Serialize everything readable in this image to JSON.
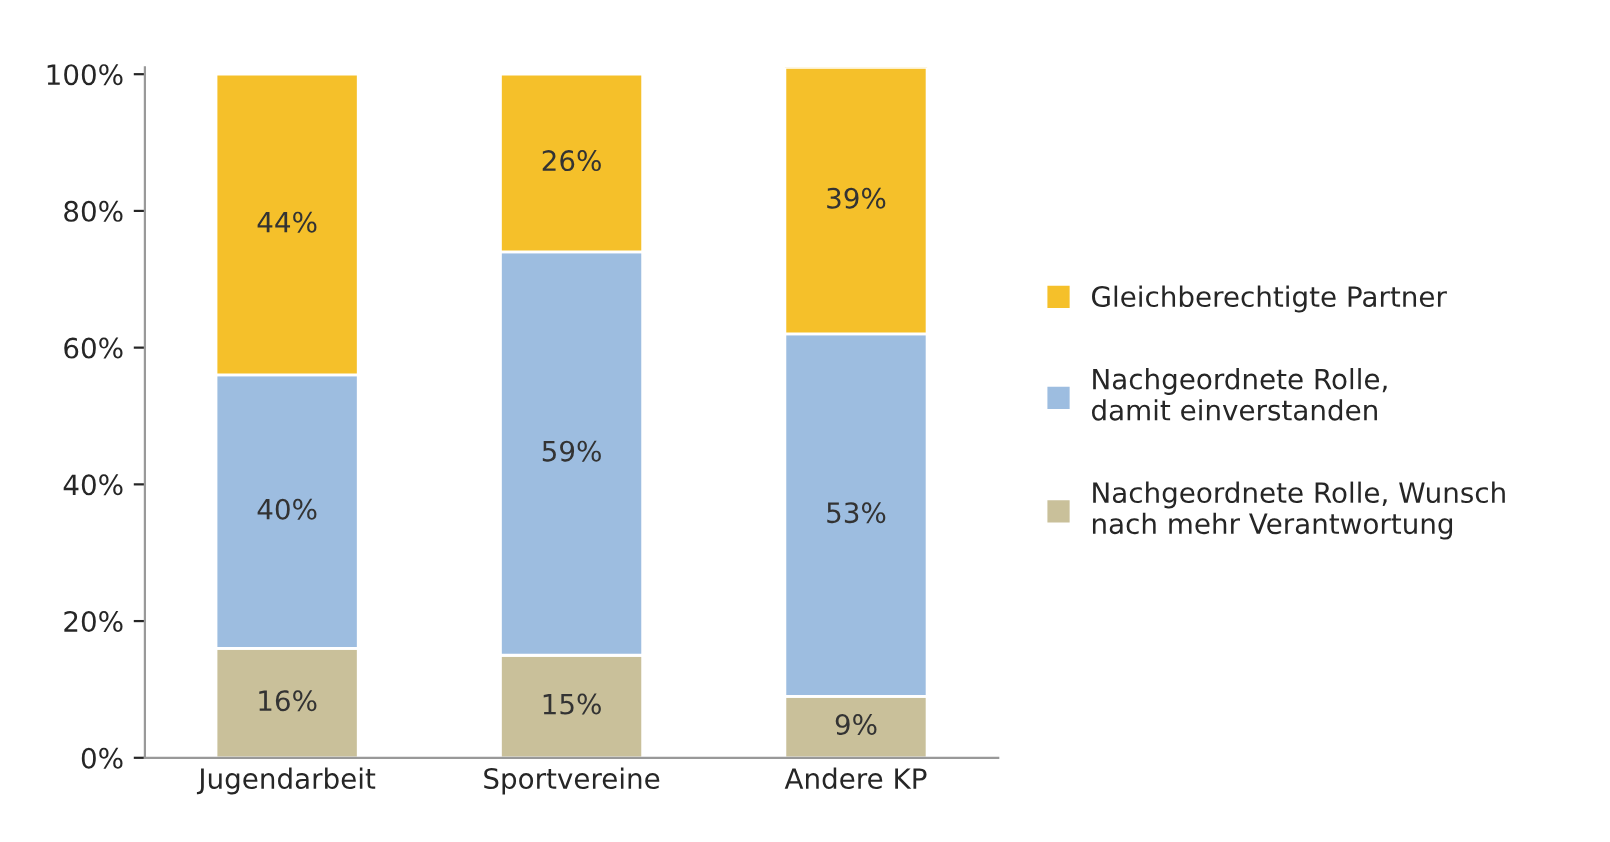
{
  "chart_data": {
    "type": "bar",
    "stacked": true,
    "categories": [
      "Jugendarbeit",
      "Sportvereine",
      "Andere KP"
    ],
    "series": [
      {
        "name": "Nachgeordnete Rolle, Wunsch\nnach mehr Verantwortung",
        "color": "#c9c09a",
        "values": [
          16,
          15,
          9
        ],
        "value_labels": [
          "16%",
          "15%",
          "9%"
        ]
      },
      {
        "name": "Nachgeordnete Rolle,\ndamit einverstanden",
        "color": "#9dbde0",
        "values": [
          40,
          59,
          53
        ],
        "value_labels": [
          "40%",
          "59%",
          "53%"
        ]
      },
      {
        "name": "Gleichberechtigte Partner",
        "color": "#f5c02a",
        "values": [
          44,
          26,
          39
        ],
        "value_labels": [
          "44%",
          "26%",
          "39%"
        ]
      }
    ],
    "ylim": [
      0,
      101
    ],
    "yticks": [
      {
        "value": 0,
        "label": "0%"
      },
      {
        "value": 20,
        "label": "20%"
      },
      {
        "value": 40,
        "label": "40%"
      },
      {
        "value": 60,
        "label": "60%"
      },
      {
        "value": 80,
        "label": "80%"
      },
      {
        "value": 100,
        "label": "100%"
      }
    ],
    "grid": false,
    "legend": "right"
  }
}
